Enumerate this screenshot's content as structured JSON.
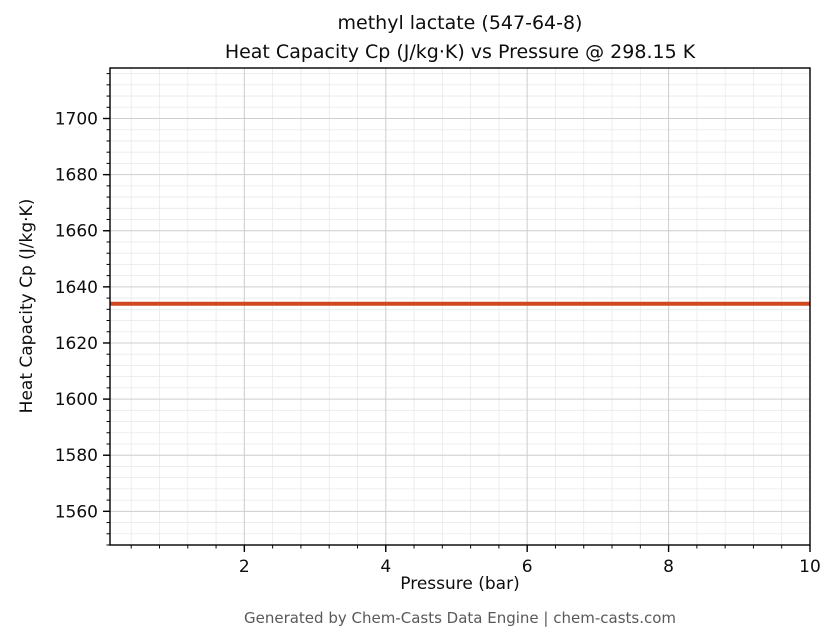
{
  "chart_data": {
    "type": "line",
    "title_line1": "methyl lactate (547-64-8)",
    "title_line2": "Heat Capacity Cp (J/kg·K) vs Pressure @ 298.15 K",
    "xlabel": "Pressure (bar)",
    "ylabel": "Heat Capacity Cp (J/kg·K)",
    "series": [
      {
        "name": "Heat Capacity Cp",
        "x": [
          0.1,
          2,
          4,
          6,
          8,
          10
        ],
        "y": [
          1634,
          1634,
          1634,
          1634,
          1634,
          1634
        ]
      }
    ],
    "xlim": [
      0.1,
      10
    ],
    "ylim": [
      1548,
      1718
    ],
    "x_ticks": [
      2,
      4,
      6,
      8,
      10
    ],
    "y_ticks": [
      1560,
      1580,
      1600,
      1620,
      1640,
      1660,
      1680,
      1700
    ],
    "x_minor_step": 0.4,
    "y_minor_step": 4,
    "grid": true,
    "legend": false,
    "line_color": "#d0481f",
    "line_width": 4,
    "axis_color": "#000000",
    "major_grid_color": "#cfcfcf",
    "minor_grid_color": "#e9e9e9"
  },
  "footer": {
    "credit": "Generated by Chem-Casts Data Engine | chem-casts.com"
  }
}
